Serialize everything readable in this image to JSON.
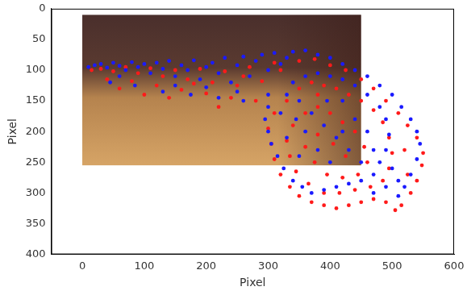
{
  "chart_data": {
    "type": "scatter",
    "x_label": "Pixel",
    "y_label": "Pixel",
    "xlim": [
      -50,
      600
    ],
    "xticks": [
      0,
      100,
      200,
      300,
      400,
      500,
      600
    ],
    "ylim": [
      400,
      0
    ],
    "yticks": [
      0,
      50,
      100,
      150,
      200,
      250,
      300,
      350,
      400
    ],
    "grid": false,
    "series": [
      {
        "color": "#1a1aff",
        "marker": "circle",
        "x": [
          10,
          20,
          30,
          40,
          50,
          60,
          70,
          80,
          90,
          100,
          110,
          120,
          130,
          140,
          150,
          160,
          170,
          180,
          190,
          200,
          210,
          220,
          230,
          240,
          250,
          260,
          270,
          280,
          290,
          300,
          310,
          320,
          330,
          45,
          85,
          130,
          175,
          220,
          260,
          300,
          60,
          150,
          200,
          250,
          340,
          360,
          380,
          400,
          420,
          440,
          460,
          480,
          500,
          515,
          530,
          540,
          545,
          540,
          530,
          520,
          510,
          300,
          295,
          300,
          305,
          315,
          325,
          340,
          355,
          370,
          390,
          410,
          430,
          450,
          470,
          480,
          490,
          495,
          490,
          480,
          460,
          440,
          420,
          400,
          380,
          360,
          340,
          330,
          320,
          350,
          370,
          390,
          410,
          430,
          450,
          360,
          380,
          400,
          420,
          440,
          460,
          470,
          350,
          330,
          500,
          510,
          470,
          490,
          395,
          420,
          345
        ],
        "y": [
          95,
          92,
          90,
          96,
          88,
          93,
          100,
          87,
          95,
          90,
          105,
          88,
          98,
          85,
          110,
          92,
          100,
          84,
          115,
          95,
          88,
          105,
          80,
          120,
          92,
          78,
          110,
          85,
          75,
          100,
          72,
          90,
          80,
          120,
          125,
          135,
          140,
          145,
          150,
          140,
          110,
          125,
          128,
          135,
          70,
          68,
          75,
          80,
          90,
          100,
          110,
          125,
          140,
          160,
          180,
          200,
          220,
          245,
          270,
          290,
          305,
          160,
          180,
          200,
          220,
          240,
          260,
          280,
          290,
          300,
          295,
          290,
          285,
          280,
          270,
          250,
          230,
          205,
          180,
          160,
          140,
          125,
          115,
          110,
          105,
          110,
          120,
          140,
          170,
          150,
          170,
          190,
          210,
          230,
          250,
          200,
          230,
          250,
          200,
          180,
          200,
          230,
          240,
          210,
          260,
          280,
          300,
          290,
          150,
          150,
          180
        ]
      },
      {
        "color": "#ff1a1a",
        "marker": "circle",
        "x": [
          15,
          30,
          50,
          70,
          90,
          110,
          130,
          150,
          170,
          190,
          210,
          230,
          250,
          270,
          290,
          310,
          40,
          80,
          120,
          160,
          200,
          240,
          280,
          100,
          180,
          220,
          60,
          140,
          320,
          260,
          350,
          375,
          400,
          425,
          450,
          470,
          490,
          510,
          525,
          540,
          550,
          548,
          540,
          530,
          515,
          505,
          490,
          470,
          450,
          430,
          410,
          390,
          370,
          350,
          335,
          320,
          310,
          305,
          300,
          310,
          330,
          350,
          370,
          390,
          410,
          430,
          450,
          470,
          485,
          495,
          500,
          495,
          485,
          465,
          440,
          415,
          390,
          365,
          345,
          335,
          330,
          340,
          360,
          380,
          400,
          420,
          440,
          455,
          460,
          445,
          420,
          395,
          375,
          360,
          380,
          405,
          425,
          520,
          525,
          380
        ],
        "y": [
          100,
          98,
          102,
          95,
          105,
          97,
          110,
          100,
          115,
          98,
          120,
          102,
          125,
          95,
          118,
          88,
          115,
          118,
          125,
          132,
          138,
          145,
          150,
          140,
          122,
          160,
          130,
          145,
          100,
          110,
          85,
          82,
          92,
          100,
          115,
          130,
          150,
          170,
          190,
          210,
          235,
          255,
          280,
          300,
          320,
          328,
          315,
          310,
          315,
          320,
          325,
          320,
          315,
          305,
          290,
          270,
          245,
          220,
          195,
          170,
          150,
          130,
          120,
          125,
          130,
          140,
          150,
          165,
          185,
          210,
          235,
          260,
          280,
          290,
          295,
          300,
          300,
          285,
          265,
          240,
          215,
          190,
          170,
          160,
          170,
          185,
          200,
          225,
          250,
          270,
          275,
          270,
          250,
          225,
          205,
          220,
          240,
          230,
          270,
          140
        ]
      }
    ]
  }
}
